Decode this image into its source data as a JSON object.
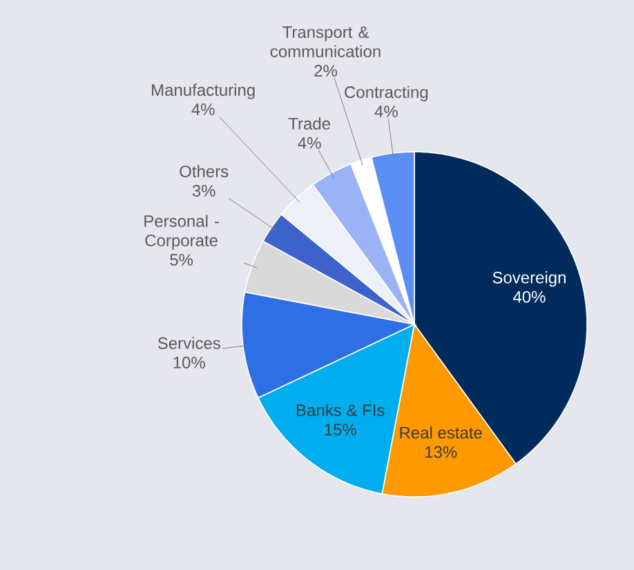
{
  "chart_data": {
    "type": "pie",
    "categories": [
      "Sovereign",
      "Real estate",
      "Banks & FIs",
      "Services",
      "Personal - Corporate",
      "Others",
      "Manufacturing",
      "Trade",
      "Transport & communication",
      "Contracting"
    ],
    "values": [
      40,
      13,
      15,
      10,
      5,
      3,
      4,
      4,
      2,
      4
    ],
    "value_labels": [
      "40%",
      "13%",
      "15%",
      "10%",
      "5%",
      "3%",
      "4%",
      "4%",
      "2%",
      "4%"
    ],
    "colors": [
      "#002b5c",
      "#ff9900",
      "#00aeef",
      "#2f6fe6",
      "#d9d9d9",
      "#3d62cc",
      "#eef0f8",
      "#99b3f5",
      "#ffffff",
      "#5b8ef5"
    ]
  }
}
